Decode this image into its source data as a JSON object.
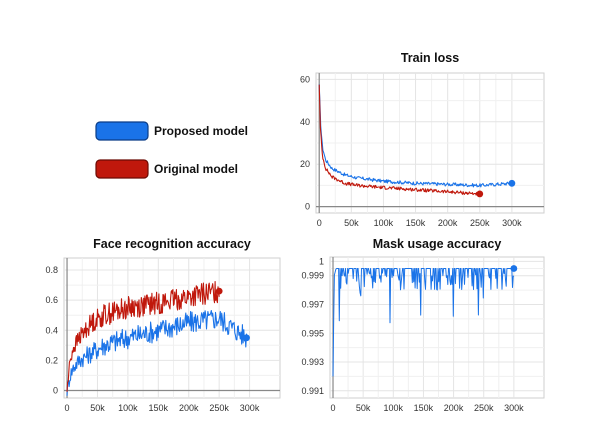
{
  "legend": {
    "items": [
      {
        "label": "Proposed model",
        "color": "#1a73e8"
      },
      {
        "label": "Original model",
        "color": "#c0180c"
      }
    ]
  },
  "chart_data": [
    {
      "type": "line",
      "title": "Train loss",
      "xlim": [
        -5000,
        350000
      ],
      "ylim": [
        -3,
        63
      ],
      "xticks": [
        0,
        50000,
        100000,
        150000,
        200000,
        250000,
        300000
      ],
      "xtick_labels": [
        "0",
        "50k",
        "100k",
        "150k",
        "200k",
        "250k",
        "300k"
      ],
      "yticks": [
        0,
        20,
        40,
        60
      ],
      "ytick_labels": [
        "0",
        "20",
        "40",
        "60"
      ],
      "grid": true,
      "series": [
        {
          "color": "#1a73e8",
          "x": [
            0,
            2000,
            5000,
            10000,
            20000,
            40000,
            60000,
            100000,
            150000,
            200000,
            250000,
            300000
          ],
          "y": [
            57,
            40,
            28,
            22,
            18,
            15,
            13.5,
            12,
            11,
            10.5,
            10,
            11
          ]
        },
        {
          "color": "#c0180c",
          "x": [
            0,
            2000,
            5000,
            10000,
            20000,
            40000,
            60000,
            100000,
            150000,
            200000,
            250000
          ],
          "y": [
            58,
            36,
            24,
            18,
            14,
            11,
            10,
            9,
            8,
            7,
            6
          ]
        }
      ]
    },
    {
      "type": "line",
      "title": "Face recognition accuracy",
      "xlim": [
        -5000,
        350000
      ],
      "ylim": [
        -0.05,
        0.88
      ],
      "xticks": [
        0,
        50000,
        100000,
        150000,
        200000,
        250000,
        300000
      ],
      "xtick_labels": [
        "0",
        "50k",
        "100k",
        "150k",
        "200k",
        "250k",
        "300k"
      ],
      "yticks": [
        0,
        0.2,
        0.4,
        0.6,
        0.8
      ],
      "ytick_labels": [
        "0",
        "0.2",
        "0.4",
        "0.6",
        "0.8"
      ],
      "grid": true,
      "series": [
        {
          "color": "#1a73e8",
          "x": [
            0,
            5000,
            10000,
            20000,
            40000,
            60000,
            100000,
            150000,
            200000,
            250000,
            295000
          ],
          "y": [
            0,
            0.1,
            0.15,
            0.2,
            0.25,
            0.3,
            0.35,
            0.4,
            0.45,
            0.48,
            0.35
          ]
        },
        {
          "color": "#c0180c",
          "x": [
            0,
            5000,
            10000,
            20000,
            40000,
            60000,
            100000,
            150000,
            200000,
            250000
          ],
          "y": [
            0,
            0.2,
            0.28,
            0.35,
            0.45,
            0.5,
            0.55,
            0.58,
            0.62,
            0.66
          ]
        }
      ]
    },
    {
      "type": "line",
      "title": "Mask usage accuracy",
      "xlim": [
        -5000,
        350000
      ],
      "ylim": [
        0.9905,
        1.0003
      ],
      "xticks": [
        0,
        50000,
        100000,
        150000,
        200000,
        250000,
        300000
      ],
      "xtick_labels": [
        "0",
        "50k",
        "100k",
        "150k",
        "200k",
        "250k",
        "300k"
      ],
      "yticks": [
        0.991,
        0.993,
        0.995,
        0.997,
        0.999,
        1.0
      ],
      "ytick_labels": [
        "0.991",
        "0.993",
        "0.995",
        "0.997",
        "0.999",
        "1"
      ],
      "grid": true,
      "series": [
        {
          "color": "#1a73e8",
          "x": [
            0,
            2000,
            5000,
            300000
          ],
          "y": [
            0.992,
            0.999,
            0.9995,
            0.9995
          ]
        }
      ]
    }
  ]
}
